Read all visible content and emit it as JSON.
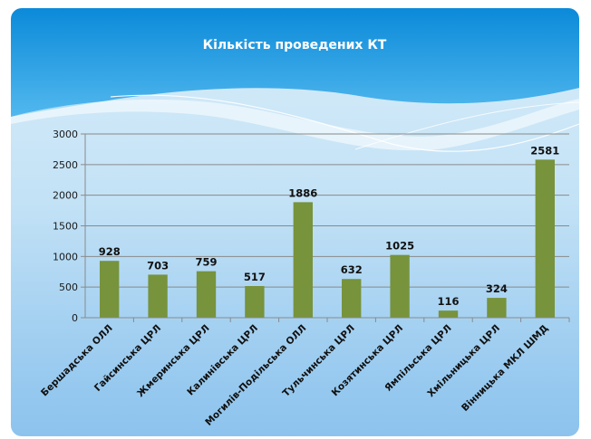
{
  "chart_data": {
    "type": "bar",
    "title": "Кількість проведених КТ",
    "categories": [
      "Бершадська ОЛЛ",
      "Гайсинська ЦРЛ",
      "Жмеринська ЦРЛ",
      "Калинівська ЦРЛ",
      "Могилів-Подільська ОЛЛ",
      "Тульчинська ЦРЛ",
      "Козятинська ЦРЛ",
      "Ямпільська ЦРЛ",
      "Хмільницька ЦРЛ",
      "Вінницька МКЛ ШМД"
    ],
    "values": [
      928,
      703,
      759,
      517,
      1886,
      632,
      1025,
      116,
      324,
      2581
    ],
    "ylim": [
      0,
      3000
    ],
    "yticks": [
      0,
      500,
      1000,
      1500,
      2000,
      2500,
      3000
    ],
    "grid": true,
    "legend": "none",
    "colors": {
      "bar": "#77933c",
      "grid": "#8a8a8a",
      "header_top": "#0e8fdc",
      "header_bottom": "#49b3ec"
    }
  }
}
